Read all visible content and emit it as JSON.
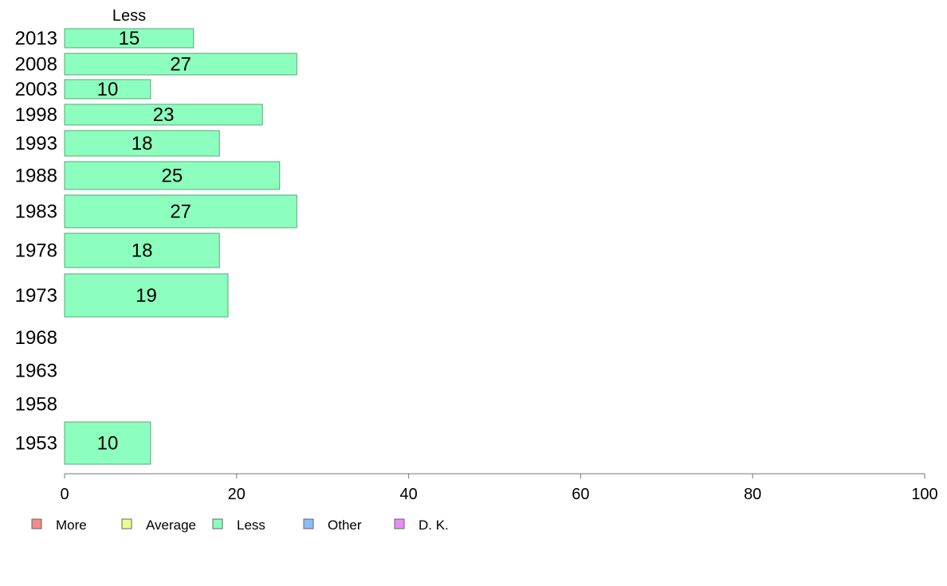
{
  "chart_data": {
    "type": "bar",
    "orientation": "horizontal",
    "title": "",
    "panel_label": "Less",
    "categories": [
      "2013",
      "2008",
      "2003",
      "1998",
      "1993",
      "1988",
      "1983",
      "1978",
      "1973",
      "1968",
      "1963",
      "1958",
      "1953"
    ],
    "series": [
      {
        "name": "Less",
        "color": "#8cffbe",
        "values": [
          15,
          27,
          10,
          23,
          18,
          25,
          27,
          18,
          19,
          null,
          null,
          null,
          10
        ]
      }
    ],
    "xlim": [
      0,
      100
    ],
    "xticks": [
      "0",
      "20",
      "40",
      "60",
      "80",
      "100"
    ],
    "grid": false,
    "legend": {
      "placement": "bottom",
      "entries": [
        {
          "label": "More",
          "color": "#f48a8a"
        },
        {
          "label": "Average",
          "color": "#ecfc8c"
        },
        {
          "label": "Less",
          "color": "#8cffbe"
        },
        {
          "label": "Other",
          "color": "#8cbcfc"
        },
        {
          "label": "D. K.",
          "color": "#e88cf4"
        }
      ]
    }
  }
}
